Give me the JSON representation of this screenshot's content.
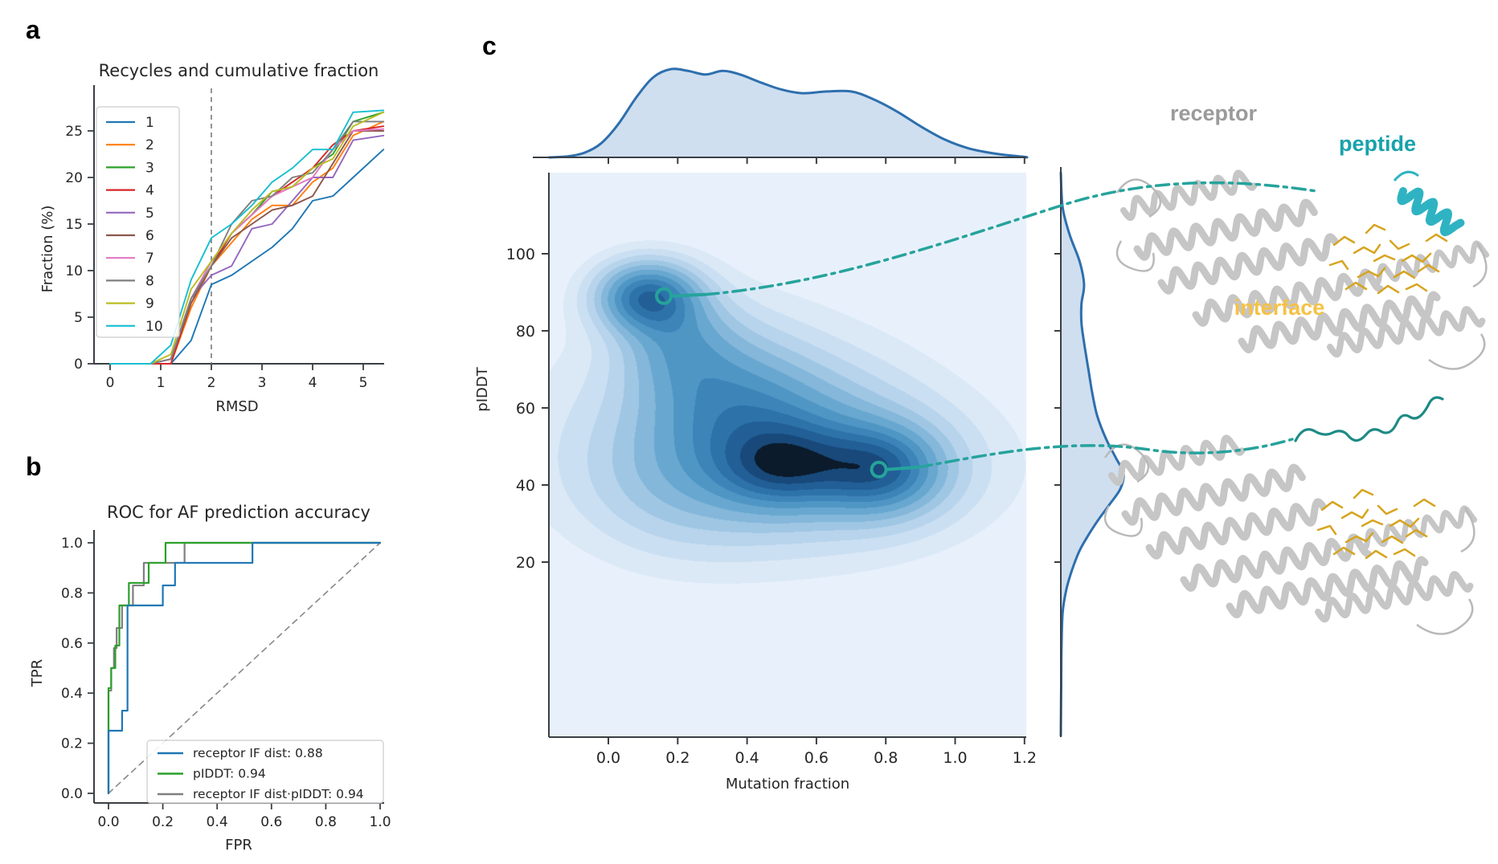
{
  "colors": {
    "accent_teal": "#26a39c",
    "peptide_helix": "#2fb3c2",
    "peptide_squiggle": "#1d8a85",
    "interface_gold": "#d7a41f",
    "receptor_gray": "#c6c6c6",
    "marginal_fill": "#cfdff0",
    "marginal_stroke": "#2e6fad",
    "spine": "#3a3f44",
    "dashed_gray": "#888888",
    "kde_bands": [
      "#e8f1fb",
      "#dbe9f7",
      "#cbdff2",
      "#b7d4ec",
      "#9fc7e4",
      "#84b7da",
      "#68a8d0",
      "#5096c5",
      "#3d85b9",
      "#2d73aa",
      "#225f97",
      "#18497a",
      "#0b1b2b"
    ]
  },
  "panel_a": {
    "letter": "a",
    "title": "Recycles and cumulative fraction",
    "xlabel": "RMSD",
    "ylabel": "Fraction (%)",
    "xticks": [
      "0",
      "1",
      "2",
      "3",
      "4",
      "5"
    ],
    "yticks": [
      "0",
      "5",
      "10",
      "15",
      "20",
      "25"
    ]
  },
  "panel_b": {
    "letter": "b",
    "title": "ROC for AF prediction accuracy",
    "xlabel": "FPR",
    "ylabel": "TPR",
    "xticks": [
      "0.0",
      "0.2",
      "0.4",
      "0.6",
      "0.8",
      "1.0"
    ],
    "yticks": [
      "0.0",
      "0.2",
      "0.4",
      "0.6",
      "0.8",
      "1.0"
    ]
  },
  "panel_c": {
    "letter": "c",
    "xlabel": "Mutation fraction",
    "ylabel": "pIDDT",
    "xticks": [
      "0.0",
      "0.2",
      "0.4",
      "0.6",
      "0.8",
      "1.0",
      "1.2"
    ],
    "yticks": [
      "100",
      "80",
      "60",
      "40",
      "20"
    ],
    "label_receptor": "receptor",
    "label_peptide": "peptide",
    "label_interface": "interface"
  },
  "chart_data": [
    {
      "id": "a",
      "type": "line",
      "title": "Recycles and cumulative fraction",
      "xlabel": "RMSD",
      "ylabel": "Fraction (%)",
      "xlim": [
        -0.3,
        5.45
      ],
      "ylim": [
        0,
        28
      ],
      "dashed_vline_x": 2,
      "x": [
        0,
        0.8,
        1.2,
        1.6,
        2.0,
        2.4,
        2.8,
        3.2,
        3.6,
        4.0,
        4.4,
        4.8,
        5.4
      ],
      "series": [
        {
          "name": "1",
          "color": "#1f77b4",
          "values": [
            0,
            0,
            0,
            2.5,
            8.5,
            9.5,
            11,
            12.5,
            14.5,
            17.5,
            18,
            20,
            23
          ]
        },
        {
          "name": "2",
          "color": "#ff7f0e",
          "values": [
            0,
            0,
            0,
            6,
            10.5,
            13,
            15.5,
            17,
            17,
            19.5,
            21,
            24.5,
            26
          ]
        },
        {
          "name": "3",
          "color": "#2ca02c",
          "values": [
            0,
            0,
            0.5,
            7,
            10.5,
            14,
            16,
            18.5,
            19,
            21,
            22.5,
            26,
            27
          ]
        },
        {
          "name": "4",
          "color": "#d62728",
          "values": [
            0,
            0,
            0,
            6.5,
            10.5,
            14,
            16,
            18,
            19.5,
            21,
            23.5,
            25,
            25.5
          ]
        },
        {
          "name": "5",
          "color": "#9467bd",
          "values": [
            0,
            0,
            0.5,
            7,
            9.5,
            10.5,
            14.5,
            15,
            17.5,
            20,
            20,
            24,
            24.5
          ]
        },
        {
          "name": "6",
          "color": "#8c564b",
          "values": [
            0,
            0,
            0.5,
            6.5,
            10.5,
            13.5,
            15,
            16.5,
            17,
            18,
            21.5,
            25,
            25
          ]
        },
        {
          "name": "7",
          "color": "#e377c2",
          "values": [
            0,
            0,
            0.5,
            7,
            11,
            14,
            16,
            18,
            19,
            20,
            23,
            25,
            25.2
          ]
        },
        {
          "name": "8",
          "color": "#7f7f7f",
          "values": [
            0,
            0,
            0.5,
            7,
            10.5,
            15,
            17.5,
            18,
            20,
            20.5,
            23,
            26,
            26
          ]
        },
        {
          "name": "9",
          "color": "#bcbd22",
          "values": [
            0,
            0,
            1,
            8,
            11,
            14,
            16.5,
            18.5,
            19,
            21,
            22,
            25.5,
            27
          ]
        },
        {
          "name": "10",
          "color": "#17becf",
          "values": [
            0,
            0,
            2,
            9,
            13.5,
            15,
            17,
            19.5,
            21,
            23,
            23,
            27,
            27.2
          ]
        }
      ]
    },
    {
      "id": "b",
      "type": "line",
      "title": "ROC for AF prediction accuracy",
      "xlabel": "FPR",
      "ylabel": "TPR",
      "xlim": [
        0,
        1
      ],
      "ylim": [
        0,
        1
      ],
      "diagonal_reference": true,
      "series": [
        {
          "name": "receptor IF dist: 0.88",
          "auc": 0.88,
          "color": "#1f77b4",
          "points": [
            [
              0,
              0
            ],
            [
              0,
              0.25
            ],
            [
              0.05,
              0.25
            ],
            [
              0.05,
              0.33
            ],
            [
              0.07,
              0.33
            ],
            [
              0.07,
              0.75
            ],
            [
              0.2,
              0.75
            ],
            [
              0.2,
              0.83
            ],
            [
              0.245,
              0.83
            ],
            [
              0.245,
              0.92
            ],
            [
              0.53,
              0.92
            ],
            [
              0.53,
              1.0
            ],
            [
              1,
              1
            ]
          ]
        },
        {
          "name": "pIDDT: 0.94",
          "auc": 0.94,
          "color": "#2ca02c",
          "points": [
            [
              0,
              0
            ],
            [
              0,
              0.42
            ],
            [
              0.01,
              0.42
            ],
            [
              0.01,
              0.5
            ],
            [
              0.025,
              0.5
            ],
            [
              0.025,
              0.59
            ],
            [
              0.04,
              0.59
            ],
            [
              0.04,
              0.75
            ],
            [
              0.075,
              0.75
            ],
            [
              0.075,
              0.84
            ],
            [
              0.148,
              0.84
            ],
            [
              0.148,
              0.92
            ],
            [
              0.21,
              0.92
            ],
            [
              0.21,
              1.0
            ],
            [
              1,
              1
            ]
          ]
        },
        {
          "name": "receptor IF dist·pIDDT: 0.94",
          "auc": 0.94,
          "color": "#7f7f7f",
          "points": [
            [
              0,
              0
            ],
            [
              0,
              0.41
            ],
            [
              0.01,
              0.41
            ],
            [
              0.01,
              0.5
            ],
            [
              0.02,
              0.5
            ],
            [
              0.02,
              0.58
            ],
            [
              0.03,
              0.58
            ],
            [
              0.03,
              0.66
            ],
            [
              0.05,
              0.66
            ],
            [
              0.05,
              0.75
            ],
            [
              0.09,
              0.75
            ],
            [
              0.09,
              0.83
            ],
            [
              0.13,
              0.83
            ],
            [
              0.13,
              0.92
            ],
            [
              0.28,
              0.92
            ],
            [
              0.28,
              1.0
            ],
            [
              1,
              1
            ]
          ]
        }
      ]
    },
    {
      "id": "c",
      "type": "heatmap",
      "subtype": "kde-joint",
      "xlabel": "Mutation fraction",
      "ylabel": "pIDDT",
      "xlim": [
        -0.17,
        1.205
      ],
      "ylim": [
        -25,
        121
      ],
      "xticks": [
        0,
        0.2,
        0.4,
        0.6,
        0.8,
        1.0,
        1.2
      ],
      "yticks": [
        100,
        80,
        60,
        40,
        20
      ],
      "density_modes": [
        {
          "x": 0.11,
          "y": 89,
          "sx": 0.095,
          "sy": 6.0,
          "amp": 1.15
        },
        {
          "x": 0.2,
          "y": 78,
          "sx": 0.11,
          "sy": 9.0,
          "amp": 0.5
        },
        {
          "x": 0.33,
          "y": 66,
          "sx": 0.16,
          "sy": 11.0,
          "amp": 0.4
        },
        {
          "x": 0.47,
          "y": 56,
          "sx": 0.22,
          "sy": 11.0,
          "amp": 0.42
        },
        {
          "x": 0.5,
          "y": 45,
          "sx": 0.12,
          "sy": 7.0,
          "amp": 0.8
        },
        {
          "x": 0.78,
          "y": 44,
          "sx": 0.12,
          "sy": 7.5,
          "amp": 1.0
        },
        {
          "x": 0.55,
          "y": 44,
          "sx": 0.33,
          "sy": 13.0,
          "amp": 0.45
        },
        {
          "x": 0.35,
          "y": 55,
          "sx": 0.38,
          "sy": 22.0,
          "amp": 0.22
        },
        {
          "x": 0.2,
          "y": 40,
          "sx": 0.18,
          "sy": 12.0,
          "amp": 0.18
        }
      ],
      "marked_points": [
        {
          "x": 0.16,
          "y": 89,
          "links_to": "bound-structure"
        },
        {
          "x": 0.78,
          "y": 44,
          "links_to": "unbound-structure"
        }
      ],
      "top_marginal": [
        [
          -0.17,
          0
        ],
        [
          -0.12,
          0.01
        ],
        [
          -0.07,
          0.05
        ],
        [
          -0.02,
          0.16
        ],
        [
          0.03,
          0.38
        ],
        [
          0.08,
          0.67
        ],
        [
          0.13,
          0.9
        ],
        [
          0.18,
          0.99
        ],
        [
          0.23,
          0.97
        ],
        [
          0.28,
          0.93
        ],
        [
          0.33,
          0.97
        ],
        [
          0.38,
          0.93
        ],
        [
          0.44,
          0.84
        ],
        [
          0.5,
          0.76
        ],
        [
          0.56,
          0.72
        ],
        [
          0.63,
          0.74
        ],
        [
          0.7,
          0.74
        ],
        [
          0.76,
          0.66
        ],
        [
          0.83,
          0.52
        ],
        [
          0.9,
          0.35
        ],
        [
          0.97,
          0.2
        ],
        [
          1.04,
          0.1
        ],
        [
          1.12,
          0.04
        ],
        [
          1.2,
          0.005
        ],
        [
          1.205,
          0
        ]
      ],
      "right_marginal": [
        [
          121,
          0
        ],
        [
          112,
          0.03
        ],
        [
          105,
          0.14
        ],
        [
          98,
          0.3
        ],
        [
          92,
          0.37
        ],
        [
          87,
          0.33
        ],
        [
          82,
          0.33
        ],
        [
          76,
          0.38
        ],
        [
          70,
          0.44
        ],
        [
          64,
          0.5
        ],
        [
          58,
          0.58
        ],
        [
          52,
          0.72
        ],
        [
          47,
          0.88
        ],
        [
          43,
          1.0
        ],
        [
          39,
          0.95
        ],
        [
          35,
          0.78
        ],
        [
          31,
          0.6
        ],
        [
          27,
          0.44
        ],
        [
          23,
          0.3
        ],
        [
          18,
          0.18
        ],
        [
          13,
          0.09
        ],
        [
          7,
          0.03
        ],
        [
          -2,
          0.012
        ],
        [
          -12,
          0.006
        ],
        [
          -25,
          0
        ]
      ]
    }
  ]
}
